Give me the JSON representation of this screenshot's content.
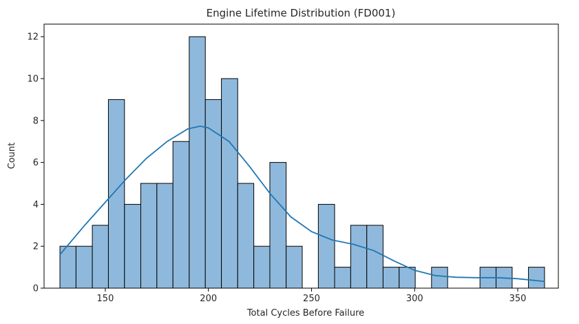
{
  "chart_data": {
    "type": "bar",
    "title": "Engine Lifetime Distribution (FD001)",
    "xlabel": "Total Cycles Before Failure",
    "ylabel": "Count",
    "xlim": [
      120.3,
      369.7
    ],
    "ylim": [
      0,
      12.6
    ],
    "xticks": [
      150,
      200,
      250,
      300,
      350
    ],
    "yticks": [
      0,
      2,
      4,
      6,
      8,
      10,
      12
    ],
    "bin_width": 7.833,
    "bins": [
      {
        "x0": 128.0,
        "x1": 135.8,
        "count": 2
      },
      {
        "x0": 135.8,
        "x1": 143.7,
        "count": 2
      },
      {
        "x0": 143.7,
        "x1": 151.5,
        "count": 3
      },
      {
        "x0": 151.5,
        "x1": 159.3,
        "count": 9
      },
      {
        "x0": 159.3,
        "x1": 167.2,
        "count": 4
      },
      {
        "x0": 167.2,
        "x1": 175.0,
        "count": 5
      },
      {
        "x0": 175.0,
        "x1": 182.8,
        "count": 5
      },
      {
        "x0": 182.8,
        "x1": 190.7,
        "count": 7
      },
      {
        "x0": 190.7,
        "x1": 198.5,
        "count": 12
      },
      {
        "x0": 198.5,
        "x1": 206.3,
        "count": 9
      },
      {
        "x0": 206.3,
        "x1": 214.2,
        "count": 10
      },
      {
        "x0": 214.2,
        "x1": 222.0,
        "count": 5
      },
      {
        "x0": 222.0,
        "x1": 229.8,
        "count": 2
      },
      {
        "x0": 229.8,
        "x1": 237.7,
        "count": 6
      },
      {
        "x0": 237.7,
        "x1": 245.5,
        "count": 2
      },
      {
        "x0": 245.5,
        "x1": 253.3,
        "count": 0
      },
      {
        "x0": 253.3,
        "x1": 261.2,
        "count": 4
      },
      {
        "x0": 261.2,
        "x1": 269.0,
        "count": 1
      },
      {
        "x0": 269.0,
        "x1": 276.8,
        "count": 3
      },
      {
        "x0": 276.8,
        "x1": 284.7,
        "count": 3
      },
      {
        "x0": 284.7,
        "x1": 292.5,
        "count": 1
      },
      {
        "x0": 292.5,
        "x1": 300.3,
        "count": 1
      },
      {
        "x0": 300.3,
        "x1": 308.2,
        "count": 0
      },
      {
        "x0": 308.2,
        "x1": 316.0,
        "count": 1
      },
      {
        "x0": 316.0,
        "x1": 323.8,
        "count": 0
      },
      {
        "x0": 323.8,
        "x1": 331.7,
        "count": 0
      },
      {
        "x0": 331.7,
        "x1": 339.5,
        "count": 1
      },
      {
        "x0": 339.5,
        "x1": 347.3,
        "count": 1
      },
      {
        "x0": 347.3,
        "x1": 355.2,
        "count": 0
      },
      {
        "x0": 355.2,
        "x1": 363.0,
        "count": 1
      }
    ],
    "kde": {
      "x": [
        128,
        140,
        150,
        160,
        170,
        180,
        190,
        196,
        200,
        210,
        220,
        230,
        240,
        250,
        260,
        270,
        280,
        290,
        300,
        310,
        320,
        330,
        340,
        350,
        363
      ],
      "y": [
        1.6,
        3.0,
        4.1,
        5.2,
        6.2,
        7.0,
        7.6,
        7.73,
        7.65,
        7.0,
        5.8,
        4.5,
        3.4,
        2.7,
        2.3,
        2.1,
        1.8,
        1.3,
        0.85,
        0.6,
        0.52,
        0.5,
        0.5,
        0.45,
        0.32
      ]
    },
    "colors": {
      "bar_fill": "#8fb9dc",
      "bar_edge": "#000000",
      "kde_line": "#1f77b4"
    },
    "grid": false,
    "legend": "none"
  }
}
